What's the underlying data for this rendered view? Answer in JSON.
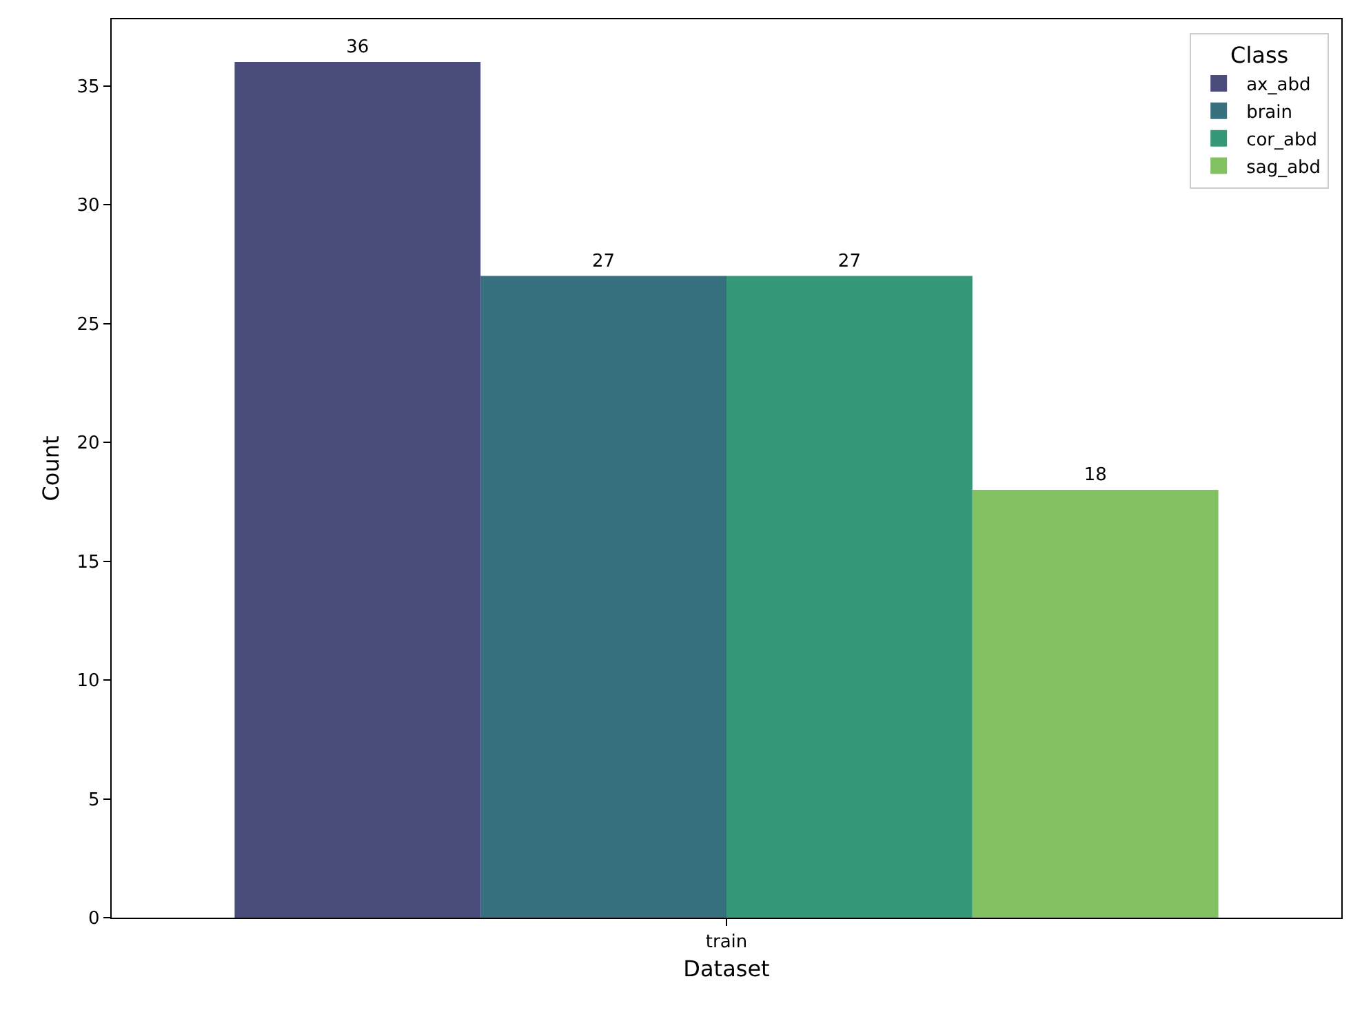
{
  "chart_data": {
    "type": "bar",
    "xlabel": "Dataset",
    "ylabel": "Count",
    "legend_title": "Class",
    "categories": [
      "train"
    ],
    "series": [
      {
        "name": "ax_abd",
        "color": "#4a4c7c",
        "values": [
          36
        ]
      },
      {
        "name": "brain",
        "color": "#37717f",
        "values": [
          27
        ]
      },
      {
        "name": "cor_abd",
        "color": "#36987a",
        "values": [
          27
        ]
      },
      {
        "name": "sag_abd",
        "color": "#82c262",
        "values": [
          18
        ]
      }
    ],
    "ylim": [
      0,
      37.8
    ],
    "yticks": [
      0,
      5,
      10,
      15,
      20,
      25,
      30,
      35
    ],
    "grid": false,
    "legend": "top right",
    "data_labels": true
  }
}
